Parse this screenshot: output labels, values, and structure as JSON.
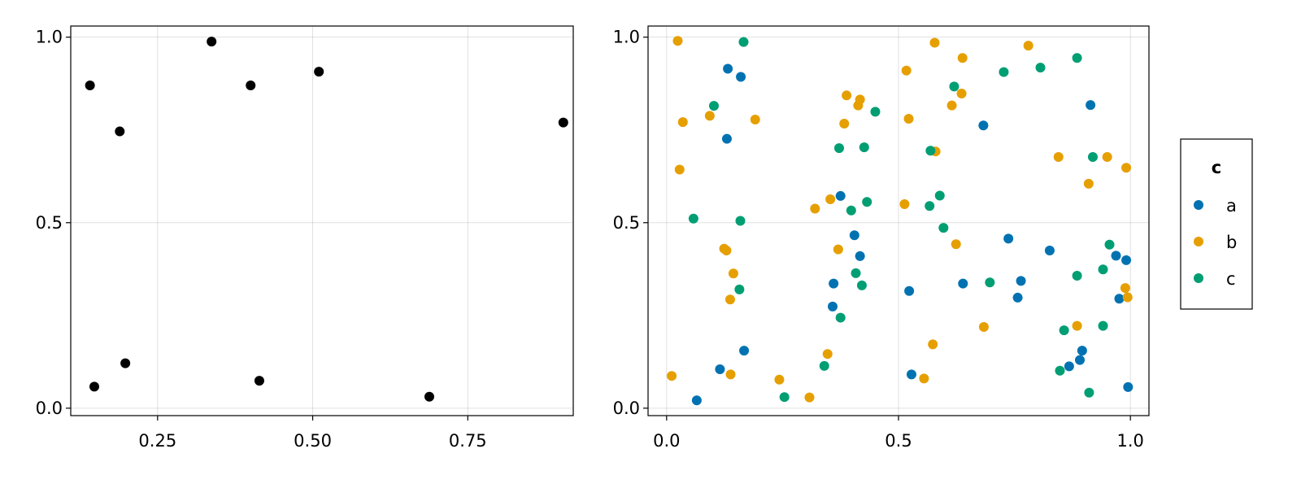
{
  "chart_data": [
    {
      "type": "scatter",
      "xlim": [
        0.11,
        0.92
      ],
      "ylim": [
        -0.02,
        1.03
      ],
      "xticks": [
        0.25,
        0.5,
        0.75
      ],
      "xtick_labels": [
        "0.25",
        "0.50",
        "0.75"
      ],
      "yticks": [
        0.0,
        0.5,
        1.0
      ],
      "ytick_labels": [
        "0.0",
        "0.5",
        "1.0"
      ],
      "grid": true,
      "series": [
        {
          "color": "#000000",
          "x": [
            0.141,
            0.189,
            0.337,
            0.4,
            0.51,
            0.904,
            0.148,
            0.198,
            0.414,
            0.688
          ],
          "y": [
            0.87,
            0.746,
            0.988,
            0.87,
            0.907,
            0.77,
            0.058,
            0.121,
            0.074,
            0.031
          ]
        }
      ]
    },
    {
      "type": "scatter",
      "xlim": [
        -0.04,
        1.04
      ],
      "ylim": [
        -0.02,
        1.03
      ],
      "xticks": [
        0.0,
        0.5,
        1.0
      ],
      "xtick_labels": [
        "0.0",
        "0.5",
        "1.0"
      ],
      "yticks": [
        0.0,
        0.5,
        1.0
      ],
      "ytick_labels": [
        "0.0",
        "0.5",
        "1.0"
      ],
      "grid": true,
      "legend": {
        "title": "c",
        "placement": "right",
        "entries": [
          "a",
          "b",
          "c"
        ]
      },
      "series": [
        {
          "name": "a",
          "color": "#0072b2",
          "x": [
            0.132,
            0.16,
            0.13,
            0.375,
            0.405,
            0.417,
            0.36,
            0.358,
            0.523,
            0.528,
            0.639,
            0.683,
            0.737,
            0.757,
            0.764,
            0.826,
            0.868,
            0.891,
            0.896,
            0.914,
            0.969,
            0.976,
            0.991,
            0.995,
            0.115,
            0.167,
            0.065
          ],
          "y": [
            0.915,
            0.893,
            0.726,
            0.572,
            0.466,
            0.41,
            0.336,
            0.274,
            0.316,
            0.091,
            0.336,
            0.762,
            0.457,
            0.298,
            0.343,
            0.425,
            0.113,
            0.13,
            0.155,
            0.817,
            0.411,
            0.295,
            0.399,
            0.057,
            0.105,
            0.155,
            0.021
          ]
        },
        {
          "name": "b",
          "color": "#e69f00",
          "x": [
            0.024,
            0.035,
            0.028,
            0.093,
            0.191,
            0.124,
            0.129,
            0.144,
            0.137,
            0.138,
            0.32,
            0.353,
            0.37,
            0.383,
            0.388,
            0.413,
            0.417,
            0.517,
            0.513,
            0.522,
            0.578,
            0.58,
            0.638,
            0.636,
            0.615,
            0.624,
            0.574,
            0.555,
            0.684,
            0.78,
            0.845,
            0.885,
            0.91,
            0.95,
            0.991,
            0.989,
            0.994,
            0.011,
            0.243,
            0.308,
            0.347
          ],
          "y": [
            0.99,
            0.771,
            0.643,
            0.788,
            0.778,
            0.43,
            0.425,
            0.363,
            0.293,
            0.091,
            0.538,
            0.563,
            0.428,
            0.767,
            0.843,
            0.816,
            0.832,
            0.91,
            0.55,
            0.78,
            0.985,
            0.692,
            0.944,
            0.848,
            0.816,
            0.442,
            0.172,
            0.08,
            0.219,
            0.977,
            0.677,
            0.222,
            0.605,
            0.677,
            0.648,
            0.324,
            0.299,
            0.087,
            0.077,
            0.029,
            0.146
          ]
        },
        {
          "name": "c",
          "color": "#009e73",
          "x": [
            0.166,
            0.102,
            0.058,
            0.159,
            0.157,
            0.372,
            0.375,
            0.398,
            0.408,
            0.421,
            0.426,
            0.432,
            0.45,
            0.569,
            0.567,
            0.589,
            0.597,
            0.62,
            0.697,
            0.727,
            0.806,
            0.885,
            0.919,
            0.955,
            0.941,
            0.885,
            0.857,
            0.848,
            0.941,
            0.911,
            0.254,
            0.34
          ],
          "y": [
            0.987,
            0.815,
            0.511,
            0.505,
            0.32,
            0.701,
            0.244,
            0.533,
            0.364,
            0.331,
            0.703,
            0.556,
            0.799,
            0.694,
            0.545,
            0.573,
            0.486,
            0.867,
            0.339,
            0.906,
            0.918,
            0.944,
            0.677,
            0.441,
            0.374,
            0.357,
            0.21,
            0.101,
            0.222,
            0.042,
            0.03,
            0.114
          ]
        }
      ]
    }
  ]
}
